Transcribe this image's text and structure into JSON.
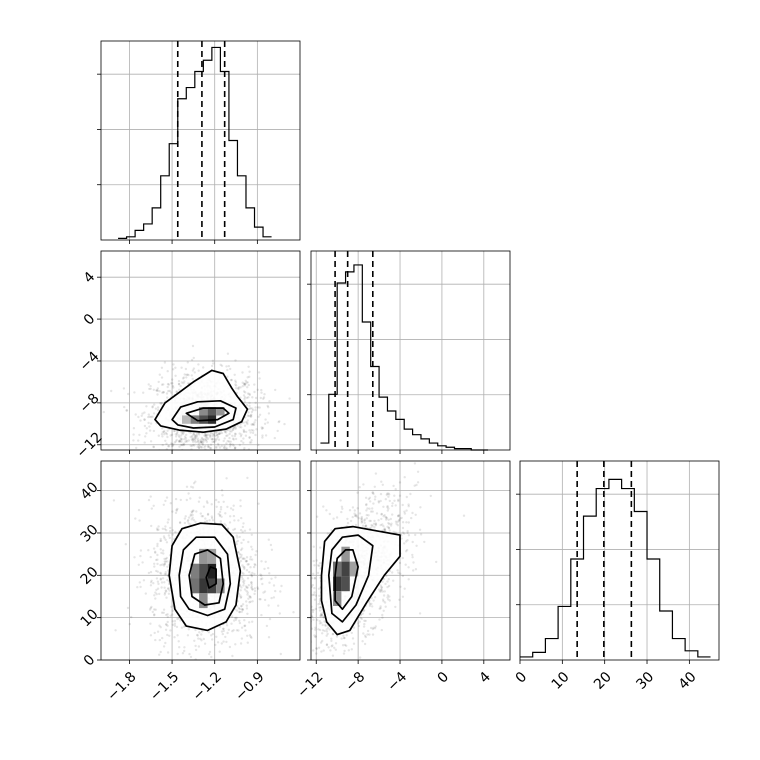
{
  "chart_data": {
    "type": "corner",
    "grid": true,
    "params": [
      {
        "range": [
          -2.0,
          -0.6
        ],
        "ticks": [
          -1.8,
          -1.5,
          -1.2,
          -0.9
        ],
        "tick_labels": [
          "−1.8",
          "−1.5",
          "−1.2",
          "−0.9"
        ]
      },
      {
        "range": [
          -12.5,
          6.5
        ],
        "ticks": [
          -12,
          -8,
          -4,
          0,
          4
        ],
        "tick_labels": [
          "−12",
          "−8",
          "−4",
          "0",
          "4"
        ]
      },
      {
        "range": [
          0,
          47
        ],
        "ticks": [
          0,
          10,
          20,
          30,
          40
        ],
        "tick_labels": [
          "0",
          "10",
          "20",
          "30",
          "40"
        ]
      }
    ],
    "histograms": [
      {
        "param": 0,
        "bin_edges": [
          -1.88,
          -1.82,
          -1.76,
          -1.7,
          -1.64,
          -1.58,
          -1.52,
          -1.46,
          -1.4,
          -1.34,
          -1.28,
          -1.22,
          -1.16,
          -1.1,
          -1.04,
          -0.98,
          -0.92,
          -0.86,
          -0.8
        ],
        "counts": [
          1,
          2,
          6,
          10,
          20,
          40,
          60,
          88,
          95,
          105,
          112,
          120,
          105,
          62,
          40,
          20,
          8,
          2
        ],
        "ymax": 124,
        "quantiles": [
          -1.46,
          -1.29,
          -1.13
        ]
      },
      {
        "param": 1,
        "bin_edges": [
          -11.6,
          -10.8,
          -10.0,
          -9.2,
          -8.4,
          -7.6,
          -6.8,
          -6.0,
          -5.2,
          -4.4,
          -3.6,
          -2.8,
          -2.0,
          -1.2,
          -0.4,
          0.4,
          1.2,
          2.0,
          2.8,
          3.6,
          4.4
        ],
        "counts": [
          5,
          40,
          120,
          128,
          133,
          92,
          60,
          38,
          28,
          22,
          15,
          11,
          8,
          5,
          3,
          2,
          1,
          1,
          0,
          0
        ],
        "ymax": 143,
        "quantiles": [
          -10.2,
          -9.0,
          -6.6
        ]
      },
      {
        "param": 2,
        "bin_edges": [
          0,
          3,
          6,
          9,
          12,
          15,
          18,
          21,
          24,
          27,
          30,
          33,
          36,
          39,
          42,
          45
        ],
        "counts": [
          2,
          5,
          14,
          35,
          66,
          94,
          112,
          118,
          112,
          97,
          66,
          32,
          14,
          6,
          2
        ],
        "ymax": 130,
        "quantiles": [
          13.5,
          19.8,
          26.3
        ]
      }
    ],
    "joint": [
      {
        "x_param": 0,
        "y_param": 1,
        "center": [
          -1.27,
          -9.2
        ],
        "spread": [
          0.14,
          1.5
        ],
        "corr": 0.0,
        "heat_cells": [
          {
            "x": -1.34,
            "y": -9.6,
            "level": 0.55
          },
          {
            "x": -1.28,
            "y": -9.6,
            "level": 0.75
          },
          {
            "x": -1.22,
            "y": -9.6,
            "level": 0.9
          },
          {
            "x": -1.22,
            "y": -8.8,
            "level": 0.7
          },
          {
            "x": -1.16,
            "y": -8.8,
            "level": 0.45
          },
          {
            "x": -1.28,
            "y": -8.8,
            "level": 0.5
          },
          {
            "x": -1.4,
            "y": -9.6,
            "level": 0.3
          }
        ],
        "contours": [
          [
            [
              -1.62,
              -9.6
            ],
            [
              -1.55,
              -8.0
            ],
            [
              -1.45,
              -7.0
            ],
            [
              -1.35,
              -6.0
            ],
            [
              -1.22,
              -4.9
            ],
            [
              -1.14,
              -5.2
            ],
            [
              -1.08,
              -6.6
            ],
            [
              -1.04,
              -7.4
            ],
            [
              -0.97,
              -8.6
            ],
            [
              -1.01,
              -9.8
            ],
            [
              -1.12,
              -10.5
            ],
            [
              -1.28,
              -10.8
            ],
            [
              -1.45,
              -10.6
            ],
            [
              -1.58,
              -10.2
            ]
          ],
          [
            [
              -1.5,
              -9.6
            ],
            [
              -1.44,
              -8.4
            ],
            [
              -1.32,
              -7.9
            ],
            [
              -1.16,
              -7.8
            ],
            [
              -1.05,
              -8.5
            ],
            [
              -1.07,
              -9.6
            ],
            [
              -1.2,
              -10.3
            ],
            [
              -1.35,
              -10.4
            ],
            [
              -1.46,
              -10.1
            ]
          ],
          [
            [
              -1.4,
              -9.0
            ],
            [
              -1.28,
              -8.5
            ],
            [
              -1.14,
              -8.5
            ],
            [
              -1.1,
              -9.0
            ],
            [
              -1.18,
              -9.6
            ],
            [
              -1.32,
              -9.7
            ]
          ]
        ]
      },
      {
        "x_param": 0,
        "y_param": 2,
        "center": [
          -1.27,
          19.8
        ],
        "spread": [
          0.14,
          6.3
        ],
        "corr": 0.0,
        "heat_cells": [
          {
            "x": -1.34,
            "y": 21.0,
            "level": 0.55
          },
          {
            "x": -1.28,
            "y": 21.0,
            "level": 0.75
          },
          {
            "x": -1.22,
            "y": 21.0,
            "level": 0.95
          },
          {
            "x": -1.28,
            "y": 17.5,
            "level": 0.85
          },
          {
            "x": -1.22,
            "y": 17.5,
            "level": 0.8
          },
          {
            "x": -1.34,
            "y": 17.5,
            "level": 0.6
          },
          {
            "x": -1.28,
            "y": 24.5,
            "level": 0.45
          },
          {
            "x": -1.22,
            "y": 24.5,
            "level": 0.4
          },
          {
            "x": -1.28,
            "y": 14.0,
            "level": 0.5
          },
          {
            "x": -1.16,
            "y": 17.5,
            "level": 0.5
          }
        ],
        "contours": [
          [
            [
              -1.52,
              20.0
            ],
            [
              -1.5,
              27.0
            ],
            [
              -1.43,
              31.0
            ],
            [
              -1.3,
              32.3
            ],
            [
              -1.15,
              32.0
            ],
            [
              -1.07,
              29.0
            ],
            [
              -1.02,
              21.0
            ],
            [
              -1.05,
              13.0
            ],
            [
              -1.12,
              9.0
            ],
            [
              -1.25,
              7.0
            ],
            [
              -1.4,
              8.0
            ],
            [
              -1.48,
              12.0
            ]
          ],
          [
            [
              -1.45,
              20.0
            ],
            [
              -1.42,
              26.0
            ],
            [
              -1.33,
              29.0
            ],
            [
              -1.2,
              29.0
            ],
            [
              -1.11,
              25.0
            ],
            [
              -1.09,
              18.0
            ],
            [
              -1.13,
              12.0
            ],
            [
              -1.25,
              10.5
            ],
            [
              -1.38,
              12.0
            ],
            [
              -1.44,
              15.0
            ]
          ],
          [
            [
              -1.38,
              20.0
            ],
            [
              -1.34,
              25.0
            ],
            [
              -1.25,
              26.0
            ],
            [
              -1.16,
              24.0
            ],
            [
              -1.14,
              18.0
            ],
            [
              -1.17,
              13.5
            ],
            [
              -1.27,
              13.0
            ],
            [
              -1.36,
              15.0
            ]
          ],
          [
            [
              -1.26,
              19.5
            ],
            [
              -1.23,
              22.0
            ],
            [
              -1.19,
              21.5
            ],
            [
              -1.19,
              18.0
            ],
            [
              -1.24,
              17.0
            ]
          ]
        ]
      },
      {
        "x_param": 1,
        "y_param": 2,
        "center": [
          -8.3,
          20.5
        ],
        "spread": [
          1.8,
          6.3
        ],
        "corr": 0.55,
        "heat_cells": [
          {
            "x": -10.0,
            "y": 18.0,
            "level": 0.85
          },
          {
            "x": -9.2,
            "y": 18.0,
            "level": 0.75
          },
          {
            "x": -9.2,
            "y": 21.5,
            "level": 0.8
          },
          {
            "x": -10.0,
            "y": 21.5,
            "level": 0.6
          },
          {
            "x": -9.2,
            "y": 25.0,
            "level": 0.45
          },
          {
            "x": -10.0,
            "y": 14.5,
            "level": 0.5
          },
          {
            "x": -8.4,
            "y": 21.5,
            "level": 0.4
          }
        ],
        "contours": [
          [
            [
              -11.5,
              20.0
            ],
            [
              -11.2,
              28.0
            ],
            [
              -10.2,
              31.0
            ],
            [
              -8.5,
              31.5
            ],
            [
              -6.2,
              30.5
            ],
            [
              -4.0,
              29.5
            ],
            [
              -4.0,
              24.5
            ],
            [
              -5.5,
              20.0
            ],
            [
              -7.2,
              13.5
            ],
            [
              -8.8,
              7.0
            ],
            [
              -10.0,
              6.0
            ],
            [
              -11.0,
              9.0
            ],
            [
              -11.5,
              14.0
            ]
          ],
          [
            [
              -10.8,
              20.0
            ],
            [
              -10.5,
              26.0
            ],
            [
              -9.5,
              29.0
            ],
            [
              -8.0,
              29.5
            ],
            [
              -6.6,
              27.0
            ],
            [
              -7.0,
              20.0
            ],
            [
              -8.2,
              13.0
            ],
            [
              -9.5,
              9.0
            ],
            [
              -10.5,
              11.0
            ]
          ],
          [
            [
              -10.2,
              20.0
            ],
            [
              -10.0,
              24.0
            ],
            [
              -9.2,
              26.0
            ],
            [
              -8.5,
              26.0
            ],
            [
              -8.0,
              22.0
            ],
            [
              -8.6,
              15.0
            ],
            [
              -9.5,
              12.0
            ],
            [
              -10.2,
              14.0
            ]
          ]
        ]
      }
    ]
  }
}
